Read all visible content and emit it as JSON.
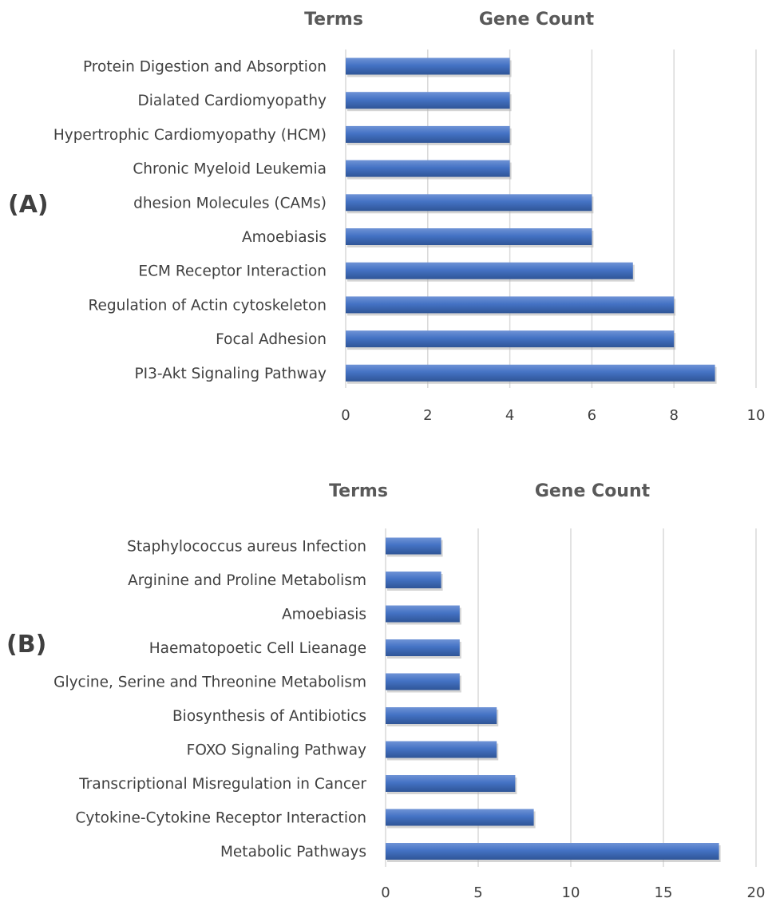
{
  "chart_data": [
    {
      "type": "bar",
      "orientation": "horizontal",
      "panel_label": "(A)",
      "terms_header": "Terms",
      "value_header": "Gene Count",
      "categories": [
        "Protein Digestion and Absorption",
        "Dialated Cardiomyopathy",
        "Hypertrophic Cardiomyopathy (HCM)",
        "Chronic Myeloid Leukemia",
        "dhesion Molecules (CAMs)",
        "Amoebiasis",
        "ECM Receptor Interaction",
        "Regulation of Actin cytoskeleton",
        "Focal Adhesion",
        "PI3-Akt Signaling Pathway"
      ],
      "values": [
        4,
        4,
        4,
        4,
        6,
        6,
        7,
        8,
        8,
        9
      ],
      "xlim": [
        0,
        10
      ],
      "xticks": [
        "0",
        "2",
        "4",
        "6",
        "8",
        "10"
      ],
      "grid": true,
      "bar_color": "#4472C4"
    },
    {
      "type": "bar",
      "orientation": "horizontal",
      "panel_label": "(B)",
      "terms_header": "Terms",
      "value_header": "Gene Count",
      "categories": [
        "Staphylococcus aureus Infection",
        "Arginine and Proline Metabolism",
        "Amoebiasis",
        "Haematopoetic Cell Lieanage",
        "Glycine, Serine and Threonine Metabolism",
        "Biosynthesis of Antibiotics",
        "FOXO Signaling Pathway",
        "Transcriptional Misregulation in Cancer",
        "Cytokine-Cytokine Receptor Interaction",
        "Metabolic Pathways"
      ],
      "values": [
        3,
        3,
        4,
        4,
        4,
        6,
        6,
        7,
        8,
        18
      ],
      "xlim": [
        0,
        20
      ],
      "xticks": [
        "0",
        "5",
        "10",
        "15",
        "20"
      ],
      "grid": true,
      "bar_color": "#4472C4"
    }
  ]
}
